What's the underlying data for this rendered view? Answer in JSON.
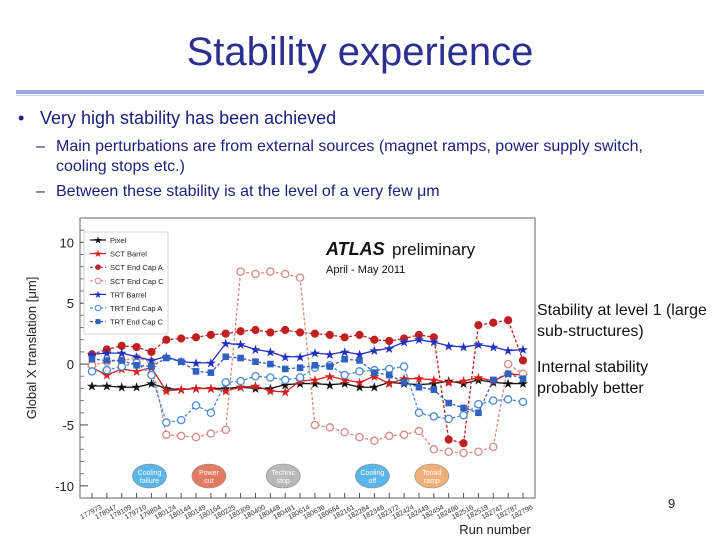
{
  "slide": {
    "title": "Stability experience",
    "bullet": "Very high stability has been achieved",
    "sub_bullets": [
      "Main perturbations are from external sources (magnet ramps, power supply switch, cooling stops etc.)",
      "Between these stability is at the level of a very few μm"
    ],
    "side_notes": [
      "Stability at level 1 (large sub-structures)",
      "Internal stability probably better"
    ],
    "page_number": "9"
  },
  "colors": {
    "title": "#2b2f8f",
    "text": "#1a1f7a"
  },
  "chart_data": {
    "type": "line",
    "header": "ATLAS",
    "header2": "preliminary",
    "subtitle": "April - May 2011",
    "xlabel": "Run number",
    "ylabel": "Global X translation [μm]",
    "ylim": [
      -11,
      12
    ],
    "yticks": [
      -10,
      -5,
      0,
      5,
      10
    ],
    "x": [
      "177973",
      "178047",
      "178109",
      "179710",
      "179804",
      "180124",
      "180144",
      "180149",
      "180164",
      "180225",
      "180309",
      "180400",
      "180448",
      "180481",
      "180614",
      "180636",
      "180664",
      "182161",
      "182284",
      "182346",
      "182372",
      "182424",
      "182449",
      "182454",
      "182486",
      "182516",
      "182519",
      "182747",
      "182787",
      "182796"
    ],
    "events": [
      {
        "label": "Cooling failure",
        "color": "#5ab6e8"
      },
      {
        "label": "Power cut",
        "color": "#e57a63"
      },
      {
        "label": "Technic stop",
        "color": "#b8b8b8"
      },
      {
        "label": "Cooling off",
        "color": "#5ab6e8"
      },
      {
        "label": "Toroid ramp",
        "color": "#f0b07a"
      }
    ],
    "series": [
      {
        "name": "Pixel",
        "color": "#111111",
        "marker": "star",
        "dash": false,
        "values": [
          -1.8,
          -1.8,
          -1.9,
          -1.9,
          -1.6,
          -2.0,
          -2.1,
          -2.0,
          -2.0,
          -2.0,
          -1.9,
          -2.0,
          -2.0,
          -1.7,
          -1.6,
          -1.6,
          -1.7,
          -1.6,
          -1.9,
          -1.9,
          -1.5,
          -1.6,
          -1.7,
          -1.6,
          -1.4,
          -1.6,
          -1.3,
          -1.5,
          -1.6,
          -1.6
        ]
      },
      {
        "name": "SCT Barrel",
        "color": "#d62020",
        "marker": "star",
        "dash": false,
        "values": [
          -0.3,
          -0.9,
          -0.4,
          -0.6,
          -0.3,
          -2.2,
          -2.1,
          -2.0,
          -2.0,
          -2.2,
          -1.9,
          -1.8,
          -2.2,
          -2.3,
          -1.4,
          -1.3,
          -1.0,
          -1.3,
          -1.5,
          -1.0,
          -1.6,
          -1.2,
          -1.2,
          -1.3,
          -1.5,
          -1.4,
          -1.1,
          -1.4,
          -0.8,
          -0.9
        ]
      },
      {
        "name": "SCT End Cap A",
        "color": "#c02020",
        "marker": "circle",
        "dash": true,
        "values": [
          0.8,
          1.2,
          1.5,
          1.4,
          1.0,
          2.0,
          2.1,
          2.2,
          2.4,
          2.5,
          2.7,
          2.8,
          2.6,
          2.8,
          2.6,
          2.5,
          2.4,
          2.2,
          2.4,
          2.0,
          1.9,
          2.1,
          2.4,
          2.2,
          -6.2,
          -6.5,
          3.2,
          3.4,
          3.6,
          0.3
        ]
      },
      {
        "name": "SCT End Cap C",
        "color": "#d88888",
        "marker": "circle-open",
        "dash": true,
        "values": [
          -0.1,
          0.2,
          0.3,
          0.5,
          0.2,
          -5.8,
          -5.9,
          -6.0,
          -5.7,
          -5.4,
          7.6,
          7.4,
          7.6,
          7.4,
          7.1,
          -5.0,
          -5.2,
          -5.6,
          -6.0,
          -6.3,
          -5.9,
          -5.8,
          -5.5,
          -7.0,
          -7.2,
          -7.3,
          -7.2,
          -6.8,
          0.0,
          -0.8
        ]
      },
      {
        "name": "TRT Barrel",
        "color": "#2030c0",
        "marker": "star",
        "dash": false,
        "values": [
          0.8,
          0.9,
          0.9,
          0.6,
          0.3,
          0.6,
          0.2,
          0.1,
          0.1,
          1.7,
          1.6,
          1.2,
          1.0,
          0.6,
          0.6,
          0.9,
          0.8,
          1.0,
          0.8,
          1.1,
          1.3,
          1.8,
          2.0,
          1.8,
          1.5,
          1.4,
          1.6,
          1.4,
          1.1,
          1.2
        ]
      },
      {
        "name": "TRT End Cap A",
        "color": "#4a8ad6",
        "marker": "circle-open",
        "dash": true,
        "values": [
          -0.6,
          -0.5,
          -0.2,
          0.1,
          -0.9,
          -4.8,
          -4.6,
          -3.4,
          -4.0,
          -1.5,
          -1.4,
          -1.0,
          -1.1,
          -1.3,
          -1.1,
          -0.3,
          -0.1,
          -0.9,
          -0.6,
          -0.5,
          -0.4,
          -0.2,
          -4.0,
          -4.3,
          -4.5,
          -4.2,
          -3.3,
          -3.0,
          -2.9,
          -3.1
        ]
      },
      {
        "name": "TRT End Cap C",
        "color": "#3060c0",
        "marker": "square",
        "dash": true,
        "values": [
          0.4,
          0.3,
          0.3,
          -0.1,
          -0.2,
          0.5,
          0.2,
          -0.6,
          -0.7,
          0.6,
          0.5,
          0.2,
          0.0,
          -0.4,
          -0.3,
          -0.1,
          -0.2,
          0.4,
          0.3,
          -0.7,
          -0.9,
          -1.5,
          -1.9,
          -2.1,
          -3.2,
          -3.6,
          -4.0,
          -1.3,
          -0.8,
          -1.2
        ]
      }
    ]
  }
}
